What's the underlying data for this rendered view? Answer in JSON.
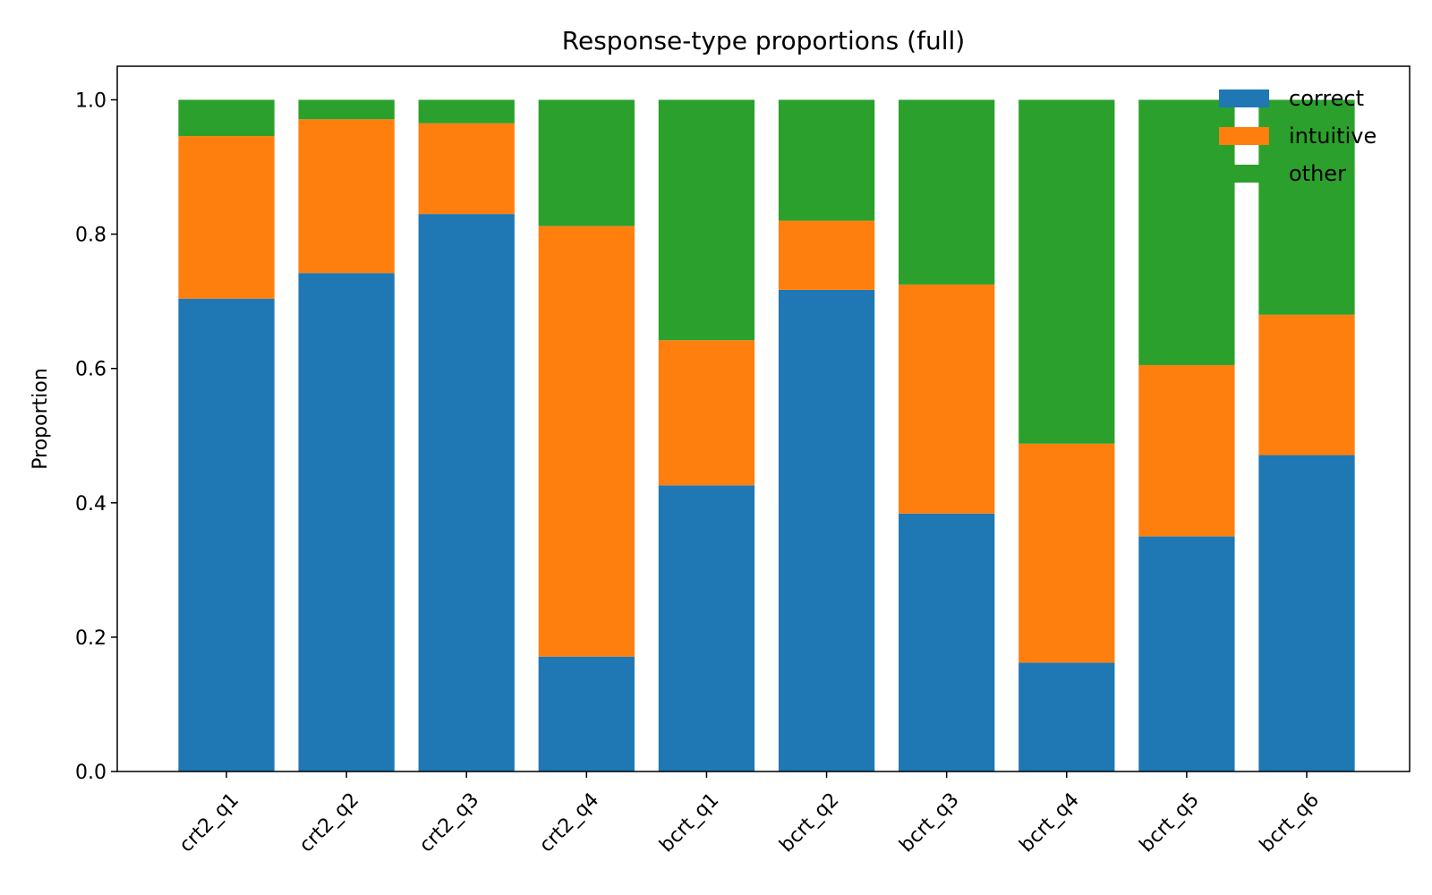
{
  "chart_data": {
    "type": "bar",
    "stacked": true,
    "title": "Response-type proportions (full)",
    "xlabel": "",
    "ylabel": "Proportion",
    "ylim": [
      0,
      1.05
    ],
    "yticks": [
      "0.0",
      "0.2",
      "0.4",
      "0.6",
      "0.8",
      "1.0"
    ],
    "categories": [
      "crt2_q1",
      "crt2_q2",
      "crt2_q3",
      "crt2_q4",
      "bcrt_q1",
      "bcrt_q2",
      "bcrt_q3",
      "bcrt_q4",
      "bcrt_q5",
      "bcrt_q6"
    ],
    "series": [
      {
        "name": "correct",
        "color": "#1f77b4",
        "values": [
          0.704,
          0.742,
          0.83,
          0.171,
          0.426,
          0.717,
          0.384,
          0.162,
          0.35,
          0.471
        ]
      },
      {
        "name": "intuitive",
        "color": "#ff7f0e",
        "values": [
          0.242,
          0.229,
          0.135,
          0.641,
          0.216,
          0.103,
          0.341,
          0.326,
          0.255,
          0.209
        ]
      },
      {
        "name": "other",
        "color": "#2ca02c",
        "values": [
          0.054,
          0.029,
          0.035,
          0.188,
          0.358,
          0.18,
          0.275,
          0.512,
          0.395,
          0.32
        ]
      }
    ],
    "grid": false,
    "legend": "top-right"
  }
}
